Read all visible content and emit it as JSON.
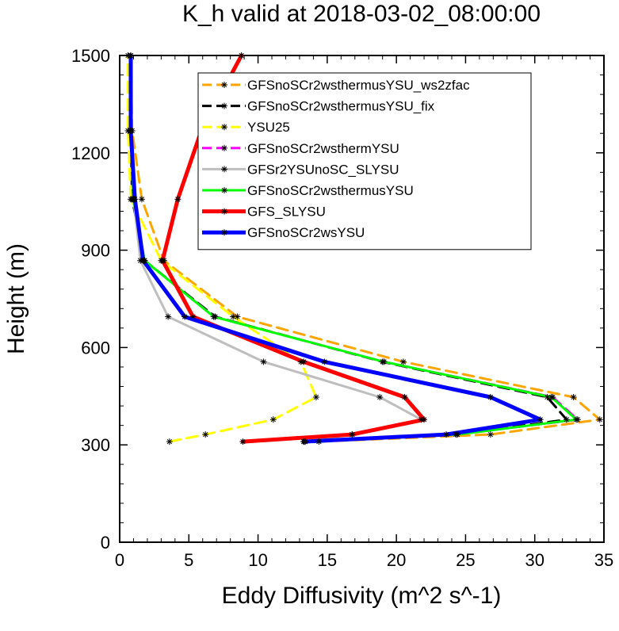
{
  "chart_data": {
    "type": "line",
    "title": "K_h valid at 2018-03-02_08:00:00",
    "xlabel": "Eddy Diffusivity (m^2 s^-1)",
    "ylabel": "Height (m)",
    "xlim": [
      0,
      35
    ],
    "ylim": [
      0,
      1500
    ],
    "xticks": [
      0,
      5,
      10,
      15,
      20,
      25,
      30,
      35
    ],
    "yticks": [
      0,
      300,
      600,
      900,
      1200,
      1500
    ],
    "grid": false,
    "legend_position": "top-right",
    "series": [
      {
        "name": "GFSnoSCr2wsthermusYSU_ws2zfac",
        "color": "#FFA500",
        "dash": "dashed",
        "width": 3,
        "points": [
          [
            14.4,
            310
          ],
          [
            26.8,
            332
          ],
          [
            34.7,
            378
          ],
          [
            32.8,
            447
          ],
          [
            20.5,
            556
          ],
          [
            8.5,
            695
          ],
          [
            3.2,
            868
          ],
          [
            1.6,
            1057
          ],
          [
            0.9,
            1268
          ],
          [
            0.8,
            1500
          ]
        ]
      },
      {
        "name": "GFSnoSCr2wsthermusYSU_fix",
        "color": "#000000",
        "dash": "dashed",
        "width": 3,
        "points": [
          [
            13.4,
            310
          ],
          [
            24.4,
            332
          ],
          [
            32.3,
            378
          ],
          [
            30.9,
            447
          ],
          [
            19.0,
            556
          ],
          [
            6.9,
            695
          ],
          [
            1.8,
            868
          ],
          [
            0.9,
            1057
          ],
          [
            0.8,
            1268
          ],
          [
            0.8,
            1500
          ]
        ]
      },
      {
        "name": "YSU25",
        "color": "#FFFF00",
        "dash": "dashed",
        "width": 3,
        "points": [
          [
            3.6,
            310
          ],
          [
            6.2,
            332
          ],
          [
            11.1,
            378
          ],
          [
            14.2,
            447
          ],
          [
            13.1,
            556
          ],
          [
            8.2,
            695
          ],
          [
            3.0,
            868
          ],
          [
            0.8,
            1057
          ],
          [
            0.6,
            1268
          ],
          [
            0.6,
            1500
          ]
        ]
      },
      {
        "name": "GFSnoSCr2wsthermYSU",
        "color": "#FF00FF",
        "dash": "dashed",
        "width": 3,
        "points": [
          [
            13.4,
            310
          ],
          [
            24.3,
            332
          ],
          [
            33.1,
            378
          ],
          [
            31.3,
            447
          ],
          [
            19.1,
            556
          ],
          [
            6.8,
            695
          ],
          [
            1.8,
            868
          ],
          [
            1.0,
            1057
          ],
          [
            0.8,
            1268
          ],
          [
            0.8,
            1500
          ]
        ]
      },
      {
        "name": "GFSr2YSUnoSC_SLYSU",
        "color": "#BEBEBE",
        "dash": "solid",
        "width": 3,
        "points": [
          [
            13.3,
            310
          ],
          [
            16.8,
            332
          ],
          [
            21.8,
            378
          ],
          [
            18.8,
            447
          ],
          [
            10.4,
            556
          ],
          [
            3.5,
            695
          ],
          [
            1.5,
            868
          ],
          [
            1.0,
            1057
          ],
          [
            0.8,
            1268
          ],
          [
            0.8,
            1500
          ]
        ]
      },
      {
        "name": "GFSnoSCr2wsthermusYSU",
        "color": "#00FF00",
        "dash": "solid",
        "width": 3,
        "points": [
          [
            13.4,
            310
          ],
          [
            24.4,
            332
          ],
          [
            33.0,
            378
          ],
          [
            31.2,
            447
          ],
          [
            19.1,
            556
          ],
          [
            6.8,
            695
          ],
          [
            1.8,
            868
          ],
          [
            1.0,
            1057
          ],
          [
            0.8,
            1268
          ],
          [
            0.8,
            1500
          ]
        ]
      },
      {
        "name": "GFS_SLYSU",
        "color": "#FF0000",
        "dash": "solid",
        "width": 5,
        "points": [
          [
            8.9,
            310
          ],
          [
            16.8,
            332
          ],
          [
            22.0,
            378
          ],
          [
            20.6,
            447
          ],
          [
            13.3,
            556
          ],
          [
            5.3,
            695
          ],
          [
            3.1,
            868
          ],
          [
            4.2,
            1057
          ],
          [
            5.9,
            1268
          ],
          [
            8.8,
            1500
          ]
        ]
      },
      {
        "name": "GFSnoSCr2wsYSU",
        "color": "#0000FF",
        "dash": "solid",
        "width": 5,
        "points": [
          [
            13.3,
            310
          ],
          [
            23.6,
            332
          ],
          [
            30.4,
            378
          ],
          [
            26.8,
            447
          ],
          [
            14.8,
            556
          ],
          [
            4.7,
            695
          ],
          [
            1.7,
            868
          ],
          [
            1.1,
            1057
          ],
          [
            0.8,
            1268
          ],
          [
            0.8,
            1500
          ]
        ]
      }
    ]
  }
}
